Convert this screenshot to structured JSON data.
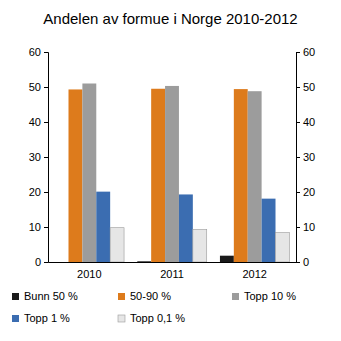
{
  "chart_data": {
    "type": "bar",
    "title": "Andelen av formue i Norge 2010-2012",
    "categories": [
      "2010",
      "2011",
      "2012"
    ],
    "series": [
      {
        "name": "Bunn 50 %",
        "color": "#1a1a1a",
        "values": [
          0,
          0.2,
          1.8
        ]
      },
      {
        "name": "50-90 %",
        "color": "#dd7b1c",
        "values": [
          49.3,
          49.5,
          49.4
        ]
      },
      {
        "name": "Topp 10 %",
        "color": "#9c9c9c",
        "values": [
          51.0,
          50.3,
          48.8
        ]
      },
      {
        "name": "Topp 1 %",
        "color": "#3b6db1",
        "values": [
          20.1,
          19.3,
          18.1
        ]
      },
      {
        "name": "Topp 0,1 %",
        "color": "#e6e6e6",
        "values": [
          9.8,
          9.3,
          8.4
        ]
      }
    ],
    "ylim": [
      0,
      60
    ],
    "yticks": [
      0,
      10,
      20,
      30,
      40,
      50,
      60
    ],
    "y2lim": [
      0,
      60
    ],
    "y2ticks": [
      0,
      10,
      20,
      30,
      40,
      50,
      60
    ],
    "legend": "bottom"
  }
}
